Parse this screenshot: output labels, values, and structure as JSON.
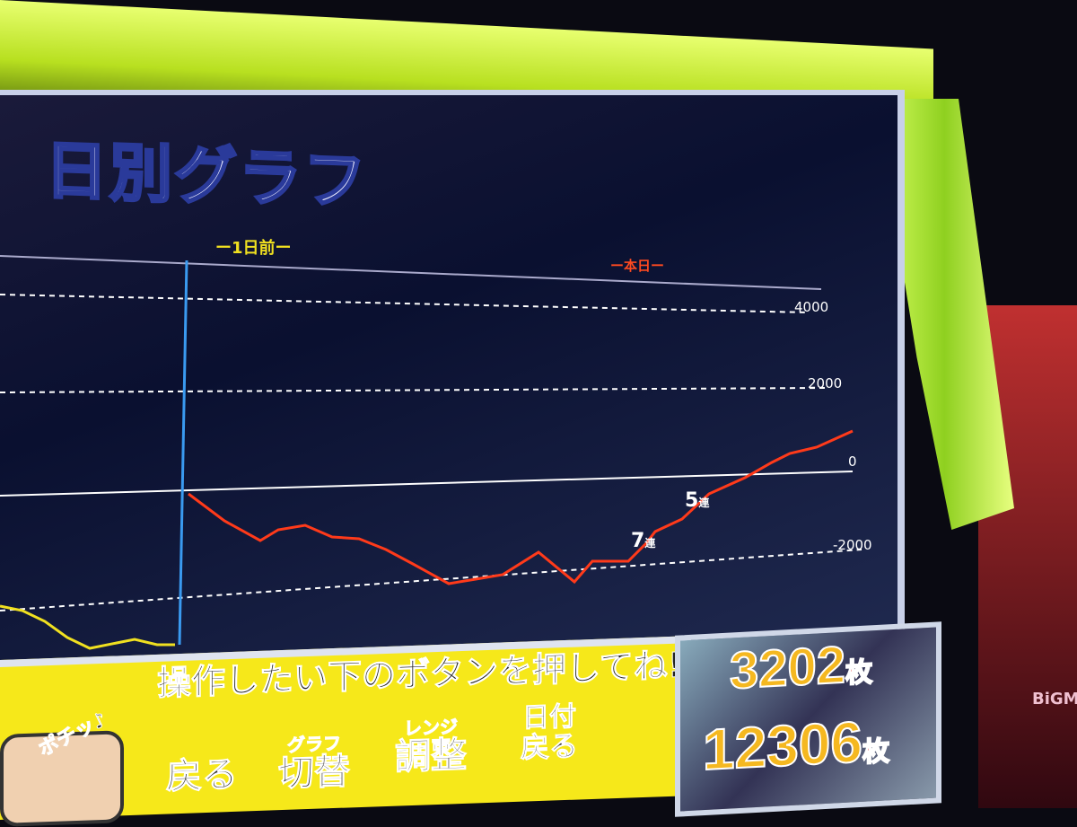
{
  "screen": {
    "title": "日別グラフ",
    "prev_day_label": "ー1日前ー",
    "today_label": "ー本日ー",
    "y_ticks": [
      "4000",
      "2000",
      "0",
      "-2000"
    ],
    "streak_labels": [
      {
        "count": "7",
        "unit": "連"
      },
      {
        "count": "5",
        "unit": "連"
      }
    ],
    "line_colors": {
      "today": "#ff3a1a",
      "prev_day": "#f0e020",
      "divider": "#3a9af0"
    }
  },
  "panel": {
    "hint": "ポチッ♪",
    "instruction": "操作したい下のボタンを押してね!",
    "buttons": [
      {
        "top": "",
        "label": "戻る"
      },
      {
        "top": "グラフ",
        "label": "切替"
      },
      {
        "top": "レンジ",
        "label": "調整"
      },
      {
        "top": "日付",
        "label": "戻る"
      }
    ]
  },
  "counter": {
    "today_value": "3202",
    "total_value": "12306",
    "unit": "枚"
  },
  "brand": "BiGM"
}
